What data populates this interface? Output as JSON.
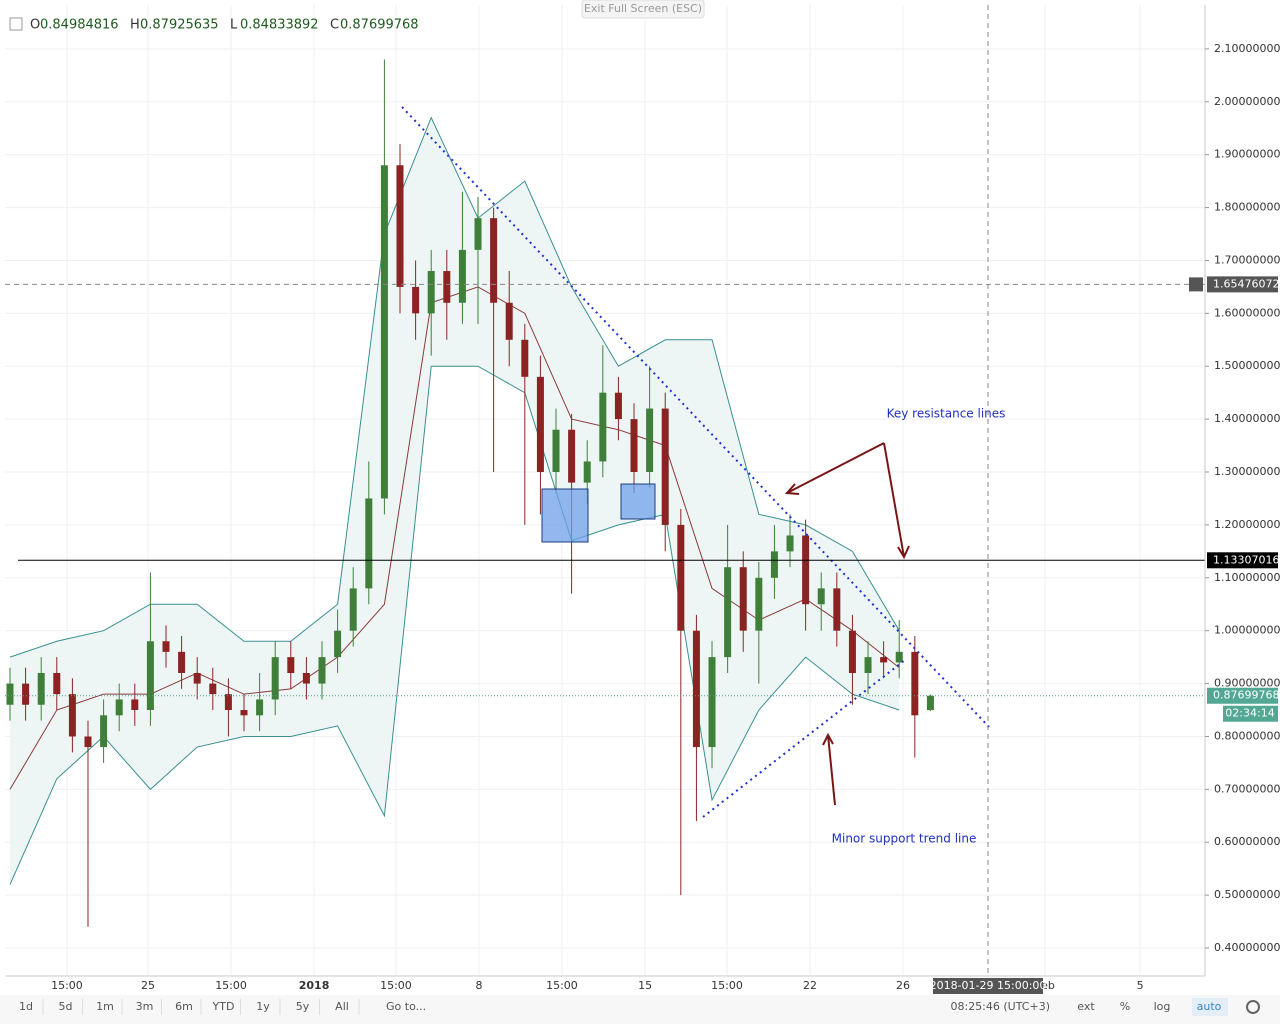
{
  "chart_data": {
    "type": "candlestick",
    "ohlc_labels": [
      "O",
      "H",
      "L",
      "C"
    ],
    "up_color": "#3f7f3a",
    "down_color": "#8b2323",
    "open": [
      0.86,
      0.9,
      0.86,
      0.92,
      0.88,
      0.8,
      0.78,
      0.84,
      0.87,
      0.85,
      0.98,
      0.96,
      0.92,
      0.9,
      0.88,
      0.85,
      0.84,
      0.87,
      0.95,
      0.92,
      0.9,
      0.95,
      1.0,
      1.08,
      1.25,
      1.88,
      1.65,
      1.6,
      1.68,
      1.62,
      1.72,
      1.78,
      1.62,
      1.55,
      1.48,
      1.3,
      1.38,
      1.28,
      1.32,
      1.45,
      1.4,
      1.3,
      1.42,
      1.2,
      1.0,
      0.78,
      0.95,
      1.12,
      1.0,
      1.1,
      1.15,
      1.18,
      1.05,
      1.08,
      1.0,
      0.92,
      0.95,
      0.94,
      0.96,
      0.84984816
    ],
    "high": [
      0.93,
      0.93,
      0.95,
      0.95,
      0.91,
      0.83,
      0.87,
      0.9,
      0.9,
      1.11,
      1.01,
      0.99,
      0.95,
      0.93,
      0.91,
      0.88,
      0.92,
      0.98,
      0.98,
      0.95,
      0.98,
      1.04,
      1.12,
      1.32,
      2.08,
      1.92,
      1.7,
      1.72,
      1.72,
      1.83,
      1.82,
      1.8,
      1.68,
      1.58,
      1.52,
      1.42,
      1.41,
      1.36,
      1.54,
      1.48,
      1.43,
      1.5,
      1.45,
      1.23,
      1.03,
      0.98,
      1.2,
      1.15,
      1.13,
      1.2,
      1.22,
      1.21,
      1.11,
      1.11,
      1.03,
      0.98,
      0.98,
      1.02,
      0.99,
      0.87925635
    ],
    "low": [
      0.83,
      0.83,
      0.83,
      0.85,
      0.77,
      0.44,
      0.75,
      0.81,
      0.82,
      0.82,
      0.93,
      0.89,
      0.87,
      0.85,
      0.8,
      0.81,
      0.81,
      0.84,
      0.89,
      0.87,
      0.87,
      0.92,
      0.97,
      1.05,
      1.22,
      1.6,
      1.55,
      1.52,
      1.55,
      1.58,
      1.58,
      1.3,
      1.5,
      1.2,
      1.22,
      1.26,
      1.07,
      1.24,
      1.29,
      1.36,
      1.26,
      1.27,
      1.15,
      0.5,
      0.64,
      0.74,
      0.92,
      0.96,
      0.9,
      1.06,
      1.12,
      1.0,
      1.0,
      0.97,
      0.86,
      0.88,
      0.91,
      0.91,
      0.76,
      0.84833892
    ],
    "close": [
      0.9,
      0.86,
      0.92,
      0.88,
      0.8,
      0.78,
      0.84,
      0.87,
      0.85,
      0.98,
      0.96,
      0.92,
      0.9,
      0.88,
      0.85,
      0.84,
      0.87,
      0.95,
      0.92,
      0.9,
      0.95,
      1.0,
      1.08,
      1.25,
      1.88,
      1.65,
      1.6,
      1.68,
      1.62,
      1.72,
      1.78,
      1.62,
      1.55,
      1.48,
      1.3,
      1.38,
      1.28,
      1.32,
      1.45,
      1.4,
      1.3,
      1.42,
      1.2,
      1.0,
      0.78,
      0.95,
      1.12,
      1.0,
      1.1,
      1.15,
      1.18,
      1.05,
      1.08,
      1.0,
      0.92,
      0.95,
      0.94,
      0.96,
      0.84,
      0.87699768
    ],
    "band_x": [
      0,
      3,
      6,
      9,
      12,
      15,
      18,
      21,
      24,
      27,
      30,
      33,
      36,
      39,
      42,
      45,
      48,
      51,
      54,
      57
    ],
    "band_upper": [
      0.95,
      0.98,
      1.0,
      1.05,
      1.05,
      0.98,
      0.98,
      1.05,
      1.75,
      1.97,
      1.78,
      1.85,
      1.65,
      1.5,
      1.55,
      1.55,
      1.22,
      1.2,
      1.15,
      1.0
    ],
    "band_middle": [
      0.7,
      0.85,
      0.88,
      0.88,
      0.92,
      0.88,
      0.89,
      0.95,
      1.05,
      1.62,
      1.65,
      1.6,
      1.4,
      1.38,
      1.35,
      1.08,
      1.02,
      1.06,
      1.0,
      0.93
    ],
    "band_lower": [
      0.52,
      0.72,
      0.8,
      0.7,
      0.78,
      0.8,
      0.8,
      0.82,
      0.65,
      1.5,
      1.5,
      1.45,
      1.17,
      1.2,
      1.22,
      0.68,
      0.85,
      0.95,
      0.88,
      0.85
    ],
    "band_color": "#3a8f8f",
    "band_fill": "#eef6f5",
    "middle_color": "#8b3a3a",
    "xlim": [
      -0.32,
      76.6
    ],
    "ylim": [
      0.349,
      2.183
    ],
    "yticks": [
      {
        "value": 0.4,
        "label": "0.40000000"
      },
      {
        "value": 0.5,
        "label": "0.50000000"
      },
      {
        "value": 0.6,
        "label": "0.60000000"
      },
      {
        "value": 0.7,
        "label": "0.70000000"
      },
      {
        "value": 0.8,
        "label": "0.80000000"
      },
      {
        "value": 0.9,
        "label": "0.90000000"
      },
      {
        "value": 1.0,
        "label": "1.00000000"
      },
      {
        "value": 1.1,
        "label": "1.10000000"
      },
      {
        "value": 1.2,
        "label": "1.20000000"
      },
      {
        "value": 1.3,
        "label": "1.30000000"
      },
      {
        "value": 1.4,
        "label": "1.40000000"
      },
      {
        "value": 1.5,
        "label": "1.50000000"
      },
      {
        "value": 1.6,
        "label": "1.60000000"
      },
      {
        "value": 1.7,
        "label": "1.70000000"
      },
      {
        "value": 1.8,
        "label": "1.80000000"
      },
      {
        "value": 1.9,
        "label": "1.90000000"
      },
      {
        "value": 2.0,
        "label": "2.00000000"
      },
      {
        "value": 2.1,
        "label": "2.10000000"
      }
    ],
    "xticks": [
      {
        "value": 3.65,
        "label": "15:00"
      },
      {
        "value": 8.85,
        "label": "25"
      },
      {
        "value": 14.17,
        "label": "15:00"
      },
      {
        "value": 19.49,
        "label": "2018"
      },
      {
        "value": 24.74,
        "label": "15:00"
      },
      {
        "value": 30.06,
        "label": "8"
      },
      {
        "value": 35.38,
        "label": "15:00"
      },
      {
        "value": 40.71,
        "label": "15"
      },
      {
        "value": 45.96,
        "label": "15:00"
      },
      {
        "value": 51.28,
        "label": "22"
      },
      {
        "value": 57.24,
        "label": "26"
      },
      {
        "value": 66.35,
        "label": "Feb"
      },
      {
        "value": 72.44,
        "label": "5"
      }
    ],
    "grid": true,
    "support_level": 1.13307016,
    "crosshair_price": 1.65476072,
    "crosshair_x": {
      "value": 62.69,
      "label": "2018-01-29 15:00:00"
    },
    "countdown": "02:34:14",
    "annotations": [
      "Key resistance lines",
      "Minor support trend line"
    ]
  },
  "top_button": "Exit Full Screen (ESC)",
  "toolbar": {
    "ranges": [
      "1d",
      "5d",
      "1m",
      "3m",
      "6m",
      "YTD",
      "1y",
      "5y",
      "All"
    ],
    "goto": "Go to...",
    "clock": "08:25:46 (UTC+3)",
    "options": [
      "ext",
      "%",
      "log",
      "auto"
    ]
  }
}
